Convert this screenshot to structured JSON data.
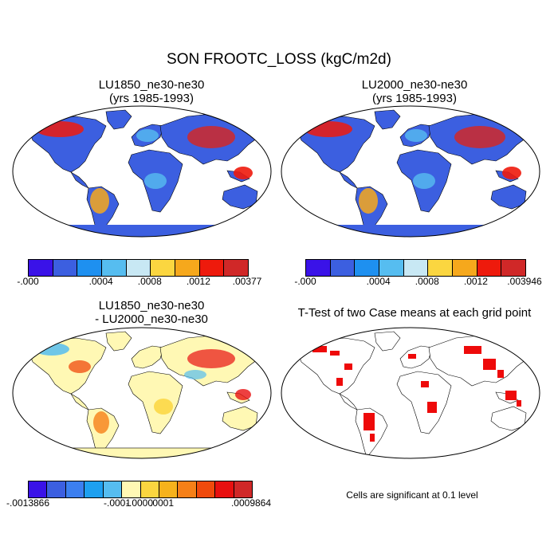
{
  "figure": {
    "title": "SON FROOTC_LOSS (kgC/m2d)"
  },
  "panels": [
    {
      "id": "case1",
      "title": "LU1850_ne30-ne30\n(yrs 1985-1993)",
      "colorbar": {
        "colors": [
          "#3a12e8",
          "#3c5fe0",
          "#1e90f0",
          "#56bdf0",
          "#c8e8f4",
          "#fbd640",
          "#f6a81c",
          "#ee1a0c",
          "#d02828"
        ],
        "tick_labels": [
          "-.000",
          "",
          "",
          ".0004",
          "",
          ".0008",
          "",
          ".0012",
          "",
          ".00377"
        ]
      }
    },
    {
      "id": "case2",
      "title": "LU2000_ne30-ne30\n(yrs 1985-1993)",
      "colorbar": {
        "colors": [
          "#3a12e8",
          "#3c5fe0",
          "#1e90f0",
          "#56bdf0",
          "#c8e8f4",
          "#fbd640",
          "#f6a81c",
          "#ee1a0c",
          "#d02828"
        ],
        "tick_labels": [
          "-.000",
          "",
          "",
          ".0004",
          "",
          ".0008",
          "",
          ".0012",
          "",
          ".003946"
        ]
      }
    },
    {
      "id": "diff",
      "title": "LU1850_ne30-ne30\n- LU2000_ne30-ne30",
      "colorbar": {
        "colors": [
          "#3a12e8",
          "#3c5fe0",
          "#3c7ff0",
          "#1ea0f0",
          "#56bdf0",
          "#fff8b4",
          "#fbd640",
          "#f6b21c",
          "#f68018",
          "#f04a0c",
          "#e81010",
          "#d02828"
        ],
        "tick_labels": [
          "-.0013866",
          "",
          "",
          "",
          "-.0001",
          "-.0000",
          ".0001",
          "",
          "",
          "",
          ".0009864"
        ]
      }
    },
    {
      "id": "ttest",
      "title": "T-Test of two Case means at each grid point",
      "note": "Cells are significant at 0.1 level"
    }
  ]
}
